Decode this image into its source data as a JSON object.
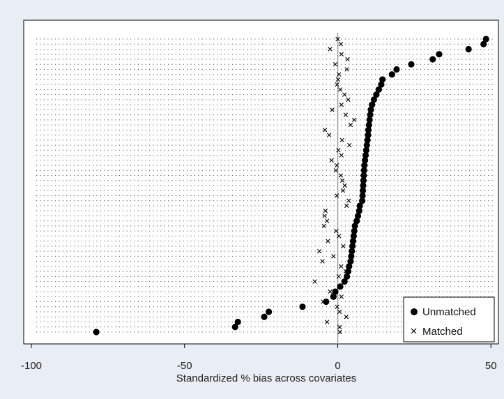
{
  "chart_data": {
    "type": "scatter",
    "title": "",
    "xlabel": "Standardized % bias across covariates",
    "ylabel": "",
    "xlim": [
      -100,
      52
    ],
    "xticks": [
      -100,
      -50,
      0,
      50
    ],
    "x_tick_labels": [
      "-100",
      "-50",
      "0",
      "50"
    ],
    "grid": true,
    "legend_position": "bottom-right",
    "reference_line_x": 0,
    "colors": {
      "background": "#e8eef3",
      "plot_area": "#ffffff",
      "marker": "#000000",
      "grid": "#555555",
      "refline": "#999999"
    },
    "series": [
      {
        "name": "Unmatched",
        "marker": "filled-circle",
        "values": [
          48.4,
          47.6,
          42.7,
          33.1,
          31.0,
          24.0,
          19.2,
          17.7,
          14.6,
          14.2,
          13.4,
          12.6,
          11.8,
          11.2,
          10.8,
          10.6,
          10.4,
          10.2,
          10.0,
          9.9,
          9.7,
          9.5,
          9.3,
          9.1,
          8.9,
          8.7,
          8.6,
          8.5,
          8.4,
          8.3,
          8.2,
          8.1,
          8.0,
          7.2,
          7.0,
          6.6,
          6.2,
          5.6,
          5.4,
          5.2,
          5.0,
          4.8,
          4.6,
          4.4,
          4.2,
          3.7,
          3.4,
          3.0,
          2.2,
          0.8,
          -0.8,
          -1.4,
          -3.8,
          -11.5,
          -22.5,
          -24.0,
          -32.6,
          -33.5,
          -78.8
        ]
      },
      {
        "name": "Matched",
        "marker": "x",
        "values": [
          0.0,
          1.0,
          -2.5,
          1.2,
          3.2,
          -0.8,
          3.0,
          0.4,
          0.1,
          -0.2,
          0.8,
          2.2,
          3.4,
          1.2,
          -1.8,
          2.6,
          5.4,
          4.2,
          -4.2,
          -2.8,
          1.4,
          3.8,
          0.2,
          1.2,
          -2.0,
          -0.3,
          -0.6,
          1.0,
          1.5,
          2.3,
          1.7,
          -0.3,
          3.6,
          2.9,
          -4.0,
          -4.3,
          -3.5,
          -4.5,
          -0.5,
          0.4,
          -3.2,
          1.8,
          -6.0,
          -1.4,
          -5.0,
          1.1,
          2.6,
          0.3,
          -7.5,
          0.5,
          -2.5,
          1.2,
          -4.8,
          -0.2,
          0.6,
          2.8,
          -3.5,
          0.6,
          0.7
        ]
      }
    ]
  }
}
